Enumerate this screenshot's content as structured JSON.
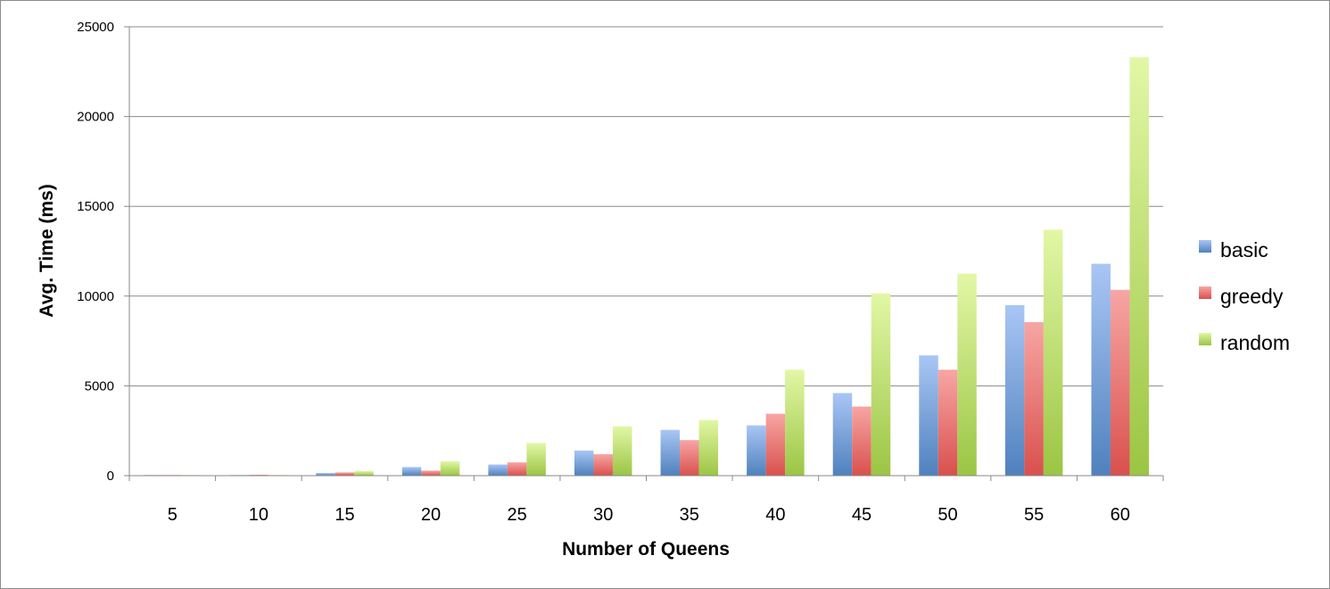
{
  "chart_data": {
    "type": "bar",
    "title": "",
    "xlabel": "Number of Queens",
    "ylabel": "Avg. Time (ms)",
    "categories": [
      "5",
      "10",
      "15",
      "20",
      "25",
      "30",
      "35",
      "40",
      "45",
      "50",
      "55",
      "60"
    ],
    "ylim": [
      0,
      25000
    ],
    "yticks": [
      "0",
      "5000",
      "10000",
      "15000",
      "20000",
      "25000"
    ],
    "grid": true,
    "legend_position": "right",
    "series": [
      {
        "name": "basic",
        "color": "#4f81bd",
        "values": [
          10,
          40,
          150,
          480,
          620,
          1400,
          2550,
          2800,
          4600,
          6700,
          9500,
          11800
        ]
      },
      {
        "name": "greedy",
        "color": "#d9504d",
        "values": [
          10,
          50,
          180,
          280,
          740,
          1200,
          1980,
          3450,
          3850,
          5900,
          8550,
          10350
        ]
      },
      {
        "name": "random",
        "color": "#9bc543",
        "values": [
          10,
          30,
          260,
          800,
          1820,
          2750,
          3100,
          5900,
          10150,
          11250,
          13700,
          23300
        ]
      }
    ]
  }
}
